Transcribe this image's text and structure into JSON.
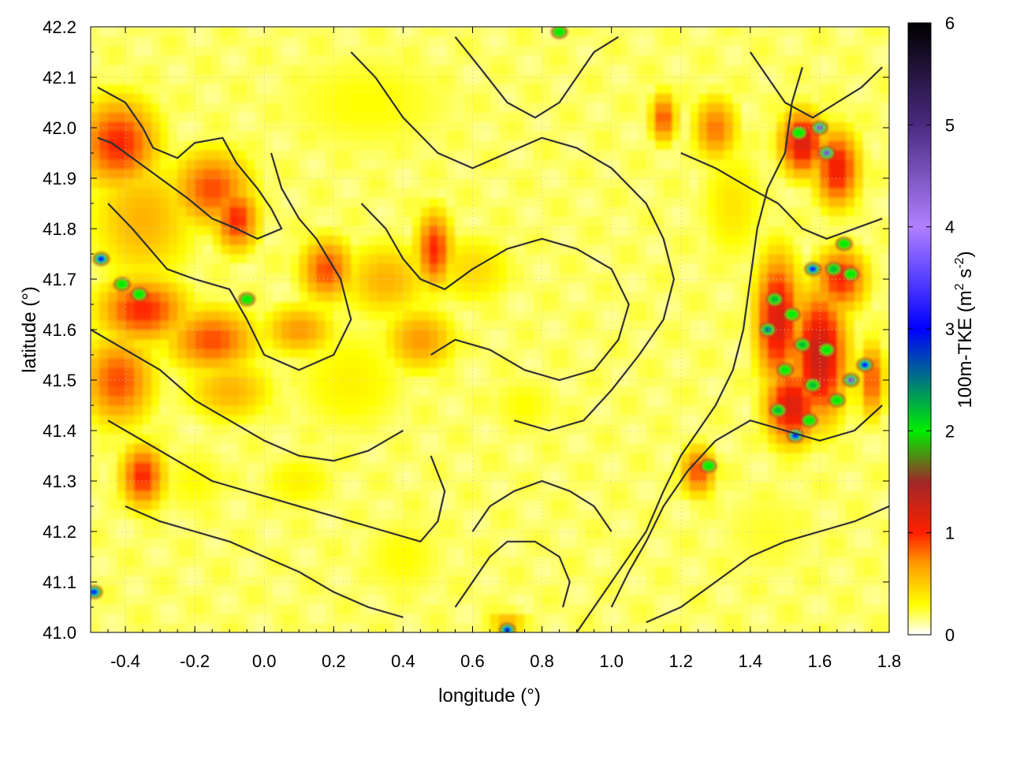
{
  "chart_data": {
    "type": "heatmap",
    "xlabel": "longitude (°)",
    "ylabel": "latitude (°)",
    "xlim": [
      -0.5,
      1.8
    ],
    "ylim": [
      41.0,
      42.2
    ],
    "x_ticks": [
      "-0.4",
      "-0.2",
      "0.0",
      "0.2",
      "0.4",
      "0.6",
      "0.8",
      "1.0",
      "1.2",
      "1.4",
      "1.6",
      "1.8"
    ],
    "x_tick_values": [
      -0.4,
      -0.2,
      0.0,
      0.2,
      0.4,
      0.6,
      0.8,
      1.0,
      1.2,
      1.4,
      1.6,
      1.8
    ],
    "y_ticks": [
      "41.0",
      "41.1",
      "41.2",
      "41.3",
      "41.4",
      "41.5",
      "41.6",
      "41.7",
      "41.8",
      "41.9",
      "42.0",
      "42.1",
      "42.2"
    ],
    "y_tick_values": [
      41.0,
      41.1,
      41.2,
      41.3,
      41.4,
      41.5,
      41.6,
      41.7,
      41.8,
      41.9,
      42.0,
      42.1,
      42.2
    ],
    "grid": true,
    "colorbar": {
      "label": "100m-TKE (m² s⁻²)",
      "label_main": "100m-TKE (m",
      "label_sup1": "2",
      "label_mid": " s",
      "label_sup2": "-2",
      "label_end": ")",
      "range": [
        0,
        6
      ],
      "ticks": [
        "0",
        "1",
        "2",
        "3",
        "4",
        "5",
        "6"
      ],
      "tick_values": [
        0,
        1,
        2,
        3,
        4,
        5,
        6
      ],
      "color_stops": [
        {
          "value": 0.0,
          "color": "#ffffff"
        },
        {
          "value": 0.3,
          "color": "#ffff00"
        },
        {
          "value": 0.7,
          "color": "#ff9900"
        },
        {
          "value": 1.0,
          "color": "#ff2000"
        },
        {
          "value": 1.5,
          "color": "#a02828"
        },
        {
          "value": 2.0,
          "color": "#00ee00"
        },
        {
          "value": 3.0,
          "color": "#0000ff"
        },
        {
          "value": 4.0,
          "color": "#b080ff"
        },
        {
          "value": 5.0,
          "color": "#4a2a80"
        },
        {
          "value": 6.0,
          "color": "#000000"
        }
      ]
    },
    "field_blobs": [
      {
        "lon": -0.42,
        "lat": 41.97,
        "tke": 1.0,
        "sx": 0.09,
        "sy": 0.07
      },
      {
        "lon": -0.15,
        "lat": 41.88,
        "tke": 0.9,
        "sx": 0.09,
        "sy": 0.06
      },
      {
        "lon": -0.35,
        "lat": 41.82,
        "tke": 0.6,
        "sx": 0.12,
        "sy": 0.1
      },
      {
        "lon": -0.08,
        "lat": 41.82,
        "tke": 1.0,
        "sx": 0.05,
        "sy": 0.05
      },
      {
        "lon": -0.35,
        "lat": 41.64,
        "tke": 1.0,
        "sx": 0.1,
        "sy": 0.05
      },
      {
        "lon": -0.42,
        "lat": 41.5,
        "tke": 0.9,
        "sx": 0.08,
        "sy": 0.07
      },
      {
        "lon": -0.15,
        "lat": 41.58,
        "tke": 0.9,
        "sx": 0.1,
        "sy": 0.05
      },
      {
        "lon": 0.1,
        "lat": 41.6,
        "tke": 0.7,
        "sx": 0.08,
        "sy": 0.04
      },
      {
        "lon": -0.1,
        "lat": 41.48,
        "tke": 0.6,
        "sx": 0.1,
        "sy": 0.05
      },
      {
        "lon": -0.35,
        "lat": 41.31,
        "tke": 1.0,
        "sx": 0.05,
        "sy": 0.05
      },
      {
        "lon": 0.18,
        "lat": 41.72,
        "tke": 0.9,
        "sx": 0.06,
        "sy": 0.05
      },
      {
        "lon": 0.35,
        "lat": 41.7,
        "tke": 0.6,
        "sx": 0.1,
        "sy": 0.06
      },
      {
        "lon": 0.49,
        "lat": 41.76,
        "tke": 1.0,
        "sx": 0.04,
        "sy": 0.06
      },
      {
        "lon": 0.45,
        "lat": 41.58,
        "tke": 0.7,
        "sx": 0.08,
        "sy": 0.05
      },
      {
        "lon": 0.6,
        "lat": 41.72,
        "tke": 0.45,
        "sx": 0.1,
        "sy": 0.06
      },
      {
        "lon": 0.25,
        "lat": 41.5,
        "tke": 0.35,
        "sx": 0.15,
        "sy": 0.1
      },
      {
        "lon": 0.3,
        "lat": 42.05,
        "tke": 0.3,
        "sx": 0.25,
        "sy": 0.1
      },
      {
        "lon": 1.15,
        "lat": 42.02,
        "tke": 0.9,
        "sx": 0.03,
        "sy": 0.04
      },
      {
        "lon": 1.3,
        "lat": 42.0,
        "tke": 0.8,
        "sx": 0.05,
        "sy": 0.05
      },
      {
        "lon": 1.55,
        "lat": 41.97,
        "tke": 1.2,
        "sx": 0.05,
        "sy": 0.05
      },
      {
        "lon": 1.65,
        "lat": 41.92,
        "tke": 1.1,
        "sx": 0.05,
        "sy": 0.06
      },
      {
        "lon": 1.48,
        "lat": 41.62,
        "tke": 1.2,
        "sx": 0.05,
        "sy": 0.1
      },
      {
        "lon": 1.6,
        "lat": 41.55,
        "tke": 1.3,
        "sx": 0.06,
        "sy": 0.1
      },
      {
        "lon": 1.52,
        "lat": 41.45,
        "tke": 1.2,
        "sx": 0.06,
        "sy": 0.06
      },
      {
        "lon": 1.66,
        "lat": 41.7,
        "tke": 1.0,
        "sx": 0.06,
        "sy": 0.05
      },
      {
        "lon": 1.75,
        "lat": 41.5,
        "tke": 0.9,
        "sx": 0.03,
        "sy": 0.06
      },
      {
        "lon": 1.25,
        "lat": 41.32,
        "tke": 0.9,
        "sx": 0.04,
        "sy": 0.04
      },
      {
        "lon": 1.35,
        "lat": 41.85,
        "tke": 0.4,
        "sx": 0.08,
        "sy": 0.1
      },
      {
        "lon": 1.45,
        "lat": 41.2,
        "tke": 0.25,
        "sx": 0.15,
        "sy": 0.1
      },
      {
        "lon": 0.4,
        "lat": 41.15,
        "tke": 0.3,
        "sx": 0.12,
        "sy": 0.08
      },
      {
        "lon": 0.1,
        "lat": 41.3,
        "tke": 0.35,
        "sx": 0.1,
        "sy": 0.05
      },
      {
        "lon": 0.75,
        "lat": 41.45,
        "tke": 0.3,
        "sx": 0.1,
        "sy": 0.06
      },
      {
        "lon": -0.2,
        "lat": 41.3,
        "tke": 0.3,
        "sx": 0.1,
        "sy": 0.07
      },
      {
        "lon": 0.7,
        "lat": 41.02,
        "tke": 0.6,
        "sx": 0.05,
        "sy": 0.02
      }
    ],
    "hotspots": [
      {
        "lon": -0.47,
        "lat": 41.74,
        "tke": 3.0
      },
      {
        "lon": -0.41,
        "lat": 41.69,
        "tke": 2.0
      },
      {
        "lon": -0.36,
        "lat": 41.67,
        "tke": 2.0
      },
      {
        "lon": -0.05,
        "lat": 41.66,
        "tke": 2.0
      },
      {
        "lon": -0.49,
        "lat": 41.08,
        "tke": 3.0
      },
      {
        "lon": 1.6,
        "lat": 42.0,
        "tke": 4.5
      },
      {
        "lon": 1.62,
        "lat": 41.95,
        "tke": 4.5
      },
      {
        "lon": 1.54,
        "lat": 41.99,
        "tke": 2.0
      },
      {
        "lon": 1.67,
        "lat": 41.77,
        "tke": 2.0
      },
      {
        "lon": 1.58,
        "lat": 41.72,
        "tke": 3.0
      },
      {
        "lon": 1.64,
        "lat": 41.72,
        "tke": 2.2
      },
      {
        "lon": 1.69,
        "lat": 41.71,
        "tke": 2.0
      },
      {
        "lon": 1.47,
        "lat": 41.66,
        "tke": 2.2
      },
      {
        "lon": 1.52,
        "lat": 41.63,
        "tke": 2.0
      },
      {
        "lon": 1.45,
        "lat": 41.6,
        "tke": 2.5
      },
      {
        "lon": 1.55,
        "lat": 41.57,
        "tke": 2.2
      },
      {
        "lon": 1.62,
        "lat": 41.56,
        "tke": 2.0
      },
      {
        "lon": 1.5,
        "lat": 41.52,
        "tke": 2.0
      },
      {
        "lon": 1.58,
        "lat": 41.49,
        "tke": 2.2
      },
      {
        "lon": 1.69,
        "lat": 41.5,
        "tke": 4.5
      },
      {
        "lon": 1.73,
        "lat": 41.53,
        "tke": 3.0
      },
      {
        "lon": 1.65,
        "lat": 41.46,
        "tke": 2.0
      },
      {
        "lon": 1.48,
        "lat": 41.44,
        "tke": 2.2
      },
      {
        "lon": 1.53,
        "lat": 41.39,
        "tke": 3.0
      },
      {
        "lon": 1.57,
        "lat": 41.42,
        "tke": 2.0
      },
      {
        "lon": 1.28,
        "lat": 41.33,
        "tke": 2.0
      },
      {
        "lon": 0.7,
        "lat": 41.005,
        "tke": 3.0
      },
      {
        "lon": 0.85,
        "lat": 42.19,
        "tke": 2.0
      }
    ],
    "contours": [
      [
        [
          -0.48,
          42.08
        ],
        [
          -0.4,
          42.05
        ],
        [
          -0.35,
          42.0
        ],
        [
          -0.32,
          41.96
        ],
        [
          -0.25,
          41.94
        ],
        [
          -0.2,
          41.97
        ],
        [
          -0.12,
          41.98
        ],
        [
          -0.08,
          41.93
        ],
        [
          -0.02,
          41.88
        ],
        [
          0.02,
          41.84
        ],
        [
          0.05,
          41.8
        ],
        [
          -0.02,
          41.78
        ],
        [
          -0.08,
          41.8
        ],
        [
          -0.15,
          41.82
        ],
        [
          -0.22,
          41.86
        ],
        [
          -0.3,
          41.9
        ],
        [
          -0.38,
          41.94
        ],
        [
          -0.44,
          41.97
        ],
        [
          -0.48,
          41.98
        ]
      ],
      [
        [
          -0.45,
          41.85
        ],
        [
          -0.38,
          41.8
        ],
        [
          -0.28,
          41.72
        ],
        [
          -0.2,
          41.7
        ],
        [
          -0.1,
          41.68
        ],
        [
          -0.05,
          41.62
        ],
        [
          0.0,
          41.55
        ],
        [
          0.1,
          41.52
        ],
        [
          0.2,
          41.55
        ],
        [
          0.25,
          41.62
        ],
        [
          0.22,
          41.7
        ],
        [
          0.15,
          41.78
        ],
        [
          0.1,
          41.82
        ],
        [
          0.05,
          41.88
        ],
        [
          0.02,
          41.95
        ]
      ],
      [
        [
          -0.5,
          41.6
        ],
        [
          -0.4,
          41.56
        ],
        [
          -0.3,
          41.52
        ],
        [
          -0.2,
          41.46
        ],
        [
          -0.1,
          41.42
        ],
        [
          0.0,
          41.38
        ],
        [
          0.1,
          41.35
        ],
        [
          0.2,
          41.34
        ],
        [
          0.3,
          41.36
        ],
        [
          0.4,
          41.4
        ]
      ],
      [
        [
          -0.45,
          41.42
        ],
        [
          -0.35,
          41.38
        ],
        [
          -0.25,
          41.34
        ],
        [
          -0.15,
          41.3
        ],
        [
          -0.05,
          41.28
        ],
        [
          0.05,
          41.26
        ],
        [
          0.15,
          41.24
        ],
        [
          0.25,
          41.22
        ],
        [
          0.35,
          41.2
        ],
        [
          0.45,
          41.18
        ],
        [
          0.5,
          41.22
        ],
        [
          0.52,
          41.28
        ],
        [
          0.48,
          41.35
        ]
      ],
      [
        [
          -0.4,
          41.25
        ],
        [
          -0.3,
          41.22
        ],
        [
          -0.2,
          41.2
        ],
        [
          -0.1,
          41.18
        ],
        [
          0.0,
          41.15
        ],
        [
          0.1,
          41.12
        ],
        [
          0.2,
          41.08
        ],
        [
          0.3,
          41.05
        ],
        [
          0.4,
          41.03
        ]
      ],
      [
        [
          0.28,
          41.85
        ],
        [
          0.35,
          41.8
        ],
        [
          0.4,
          41.74
        ],
        [
          0.45,
          41.7
        ],
        [
          0.52,
          41.68
        ],
        [
          0.6,
          41.72
        ],
        [
          0.7,
          41.76
        ],
        [
          0.8,
          41.78
        ],
        [
          0.9,
          41.76
        ],
        [
          1.0,
          41.72
        ],
        [
          1.05,
          41.65
        ],
        [
          1.02,
          41.58
        ],
        [
          0.95,
          41.52
        ],
        [
          0.85,
          41.5
        ],
        [
          0.75,
          41.52
        ],
        [
          0.65,
          41.56
        ],
        [
          0.55,
          41.58
        ],
        [
          0.48,
          41.55
        ]
      ],
      [
        [
          0.25,
          42.15
        ],
        [
          0.32,
          42.1
        ],
        [
          0.4,
          42.02
        ],
        [
          0.5,
          41.95
        ],
        [
          0.6,
          41.92
        ],
        [
          0.7,
          41.95
        ],
        [
          0.8,
          41.98
        ],
        [
          0.9,
          41.96
        ],
        [
          1.0,
          41.92
        ],
        [
          1.1,
          41.85
        ],
        [
          1.15,
          41.78
        ],
        [
          1.18,
          41.7
        ],
        [
          1.15,
          41.62
        ],
        [
          1.08,
          41.55
        ],
        [
          1.0,
          41.48
        ],
        [
          0.92,
          41.42
        ],
        [
          0.82,
          41.4
        ],
        [
          0.72,
          41.42
        ]
      ],
      [
        [
          0.55,
          42.18
        ],
        [
          0.62,
          42.12
        ],
        [
          0.7,
          42.05
        ],
        [
          0.78,
          42.02
        ],
        [
          0.85,
          42.05
        ],
        [
          0.9,
          42.1
        ],
        [
          0.95,
          42.15
        ],
        [
          1.02,
          42.18
        ]
      ],
      [
        [
          0.9,
          41.0
        ],
        [
          0.95,
          41.05
        ],
        [
          1.0,
          41.1
        ],
        [
          1.05,
          41.15
        ],
        [
          1.1,
          41.2
        ],
        [
          1.15,
          41.28
        ],
        [
          1.2,
          41.35
        ],
        [
          1.25,
          41.4
        ],
        [
          1.3,
          41.45
        ],
        [
          1.35,
          41.52
        ],
        [
          1.38,
          41.6
        ],
        [
          1.4,
          41.7
        ],
        [
          1.42,
          41.8
        ],
        [
          1.45,
          41.88
        ],
        [
          1.5,
          41.95
        ],
        [
          1.52,
          42.05
        ],
        [
          1.55,
          42.12
        ]
      ],
      [
        [
          1.0,
          41.05
        ],
        [
          1.05,
          41.12
        ],
        [
          1.1,
          41.18
        ],
        [
          1.15,
          41.25
        ],
        [
          1.22,
          41.32
        ],
        [
          1.3,
          41.38
        ],
        [
          1.4,
          41.42
        ],
        [
          1.5,
          41.4
        ],
        [
          1.6,
          41.38
        ],
        [
          1.7,
          41.4
        ],
        [
          1.78,
          41.45
        ]
      ],
      [
        [
          1.1,
          41.02
        ],
        [
          1.2,
          41.05
        ],
        [
          1.3,
          41.1
        ],
        [
          1.4,
          41.15
        ],
        [
          1.5,
          41.18
        ],
        [
          1.6,
          41.2
        ],
        [
          1.7,
          41.22
        ],
        [
          1.8,
          41.25
        ]
      ],
      [
        [
          1.2,
          41.95
        ],
        [
          1.3,
          41.92
        ],
        [
          1.4,
          41.88
        ],
        [
          1.48,
          41.85
        ],
        [
          1.55,
          41.8
        ],
        [
          1.62,
          41.78
        ],
        [
          1.7,
          41.8
        ],
        [
          1.78,
          41.82
        ]
      ],
      [
        [
          1.4,
          42.15
        ],
        [
          1.45,
          42.1
        ],
        [
          1.5,
          42.05
        ],
        [
          1.58,
          42.02
        ],
        [
          1.65,
          42.05
        ],
        [
          1.72,
          42.08
        ],
        [
          1.78,
          42.12
        ]
      ],
      [
        [
          0.6,
          41.2
        ],
        [
          0.65,
          41.25
        ],
        [
          0.72,
          41.28
        ],
        [
          0.8,
          41.3
        ],
        [
          0.88,
          41.28
        ],
        [
          0.95,
          41.25
        ],
        [
          1.0,
          41.2
        ]
      ],
      [
        [
          0.55,
          41.05
        ],
        [
          0.6,
          41.1
        ],
        [
          0.65,
          41.15
        ],
        [
          0.7,
          41.18
        ],
        [
          0.78,
          41.18
        ],
        [
          0.85,
          41.15
        ],
        [
          0.88,
          41.1
        ],
        [
          0.86,
          41.05
        ]
      ]
    ]
  }
}
